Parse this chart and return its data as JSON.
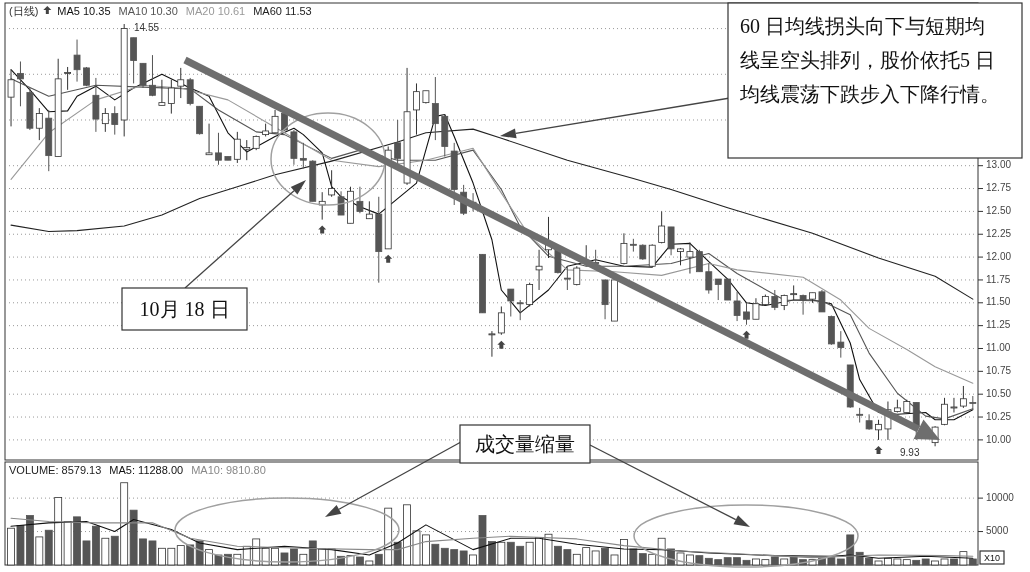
{
  "chart_data": [
    {
      "type": "candlestick",
      "title": "(日线)",
      "legend": "top left",
      "grid": "y",
      "tick_labels": "y",
      "colors": [
        "#ffffff",
        "#555555",
        "#555555",
        "#ffffff",
        "#555555",
        "#ffffff",
        "#ffffff",
        "#555555",
        "#555555",
        "#555555",
        "#ffffff",
        "#555555",
        "#ffffff",
        "#555555",
        "#555555",
        "#555555",
        "#ffffff",
        "#ffffff",
        "#ffffff",
        "#555555",
        "#555555",
        "#ffffff",
        "#555555",
        "#555555",
        "#ffffff",
        "#ffffff",
        "#ffffff",
        "#ffffff",
        "#ffffff",
        "#555555",
        "#555555",
        "#555555",
        "#555555",
        "#ffffff",
        "#ffffff",
        "#555555",
        "#ffffff",
        "#555555",
        "#ffffff",
        "#555555",
        "#ffffff",
        "#555555",
        "#ffffff",
        "#ffffff",
        "#ffffff",
        "#555555",
        "#555555",
        "#555555",
        "#555555",
        "#555555",
        "#555555",
        "#ffffff",
        "#ffffff",
        "#555555",
        "#555555",
        "#ffffff",
        "#ffffff",
        "#ffffff",
        "#555555",
        "#555555",
        "#ffffff",
        "#ffffff",
        "#555555",
        "#555555",
        "#ffffff",
        "#ffffff",
        "#555555",
        "#555555",
        "#ffffff",
        "#ffffff",
        "#555555",
        "#ffffff",
        "#ffffff",
        "#555555",
        "#555555",
        "#555555",
        "#555555",
        "#555555",
        "#555555",
        "#ffffff",
        "#ffffff",
        "#555555",
        "#ffffff",
        "#ffffff",
        "#555555",
        "#ffffff",
        "#555555",
        "#555555",
        "#555555",
        "#555555",
        "#555555",
        "#555555",
        "#ffffff",
        "#ffffff",
        "#ffffff",
        "#ffffff",
        "#555555",
        null,
        "#ffffff",
        "#ffffff",
        "#ffffff",
        "#ffffff",
        "#555555"
      ],
      "categories": [
        null,
        null,
        null,
        null,
        null,
        null,
        null,
        null,
        null,
        null,
        null,
        null,
        null,
        null,
        null,
        null,
        null,
        null,
        null,
        null,
        null,
        null,
        null,
        null,
        null,
        null,
        null,
        null,
        null,
        null,
        null,
        null,
        null,
        null,
        null,
        null,
        null,
        null,
        null,
        null,
        null,
        null,
        null,
        null,
        null,
        null,
        null,
        null,
        null,
        null,
        null,
        null,
        null,
        null,
        null,
        null,
        null,
        null,
        null,
        null,
        null,
        null,
        null,
        null,
        null,
        null,
        null,
        null,
        null,
        null,
        null,
        null,
        null,
        null,
        null,
        null,
        null,
        null,
        null,
        null,
        null,
        null,
        null,
        null,
        null,
        null,
        null,
        null,
        null,
        null,
        null,
        null,
        null,
        null,
        null,
        null,
        null,
        null,
        null,
        null,
        null,
        null,
        null
      ],
      "ohlc": [
        [
          13.75,
          14.05,
          13.43,
          13.94
        ],
        [
          14.01,
          14.14,
          13.65,
          13.95
        ],
        [
          13.8,
          13.85,
          13.39,
          13.41
        ],
        [
          13.41,
          13.63,
          13.28,
          13.57
        ],
        [
          13.52,
          13.61,
          12.94,
          13.11
        ],
        [
          13.1,
          14.17,
          13.1,
          13.95
        ],
        [
          14.01,
          14.08,
          13.83,
          14.02
        ],
        [
          14.21,
          14.38,
          13.92,
          14.05
        ],
        [
          14.07,
          14.08,
          13.87,
          13.88
        ],
        [
          13.77,
          13.96,
          13.37,
          13.51
        ],
        [
          13.46,
          13.63,
          13.37,
          13.57
        ],
        [
          13.57,
          13.65,
          13.34,
          13.45
        ],
        [
          13.5,
          14.55,
          13.32,
          14.5
        ],
        [
          14.4,
          14.4,
          13.9,
          14.15
        ],
        [
          14.12,
          14.12,
          13.85,
          13.88
        ],
        [
          13.88,
          14.21,
          13.76,
          13.77
        ],
        [
          13.66,
          13.94,
          13.66,
          13.69
        ],
        [
          13.68,
          13.94,
          13.57,
          13.85
        ],
        [
          13.87,
          14.07,
          13.74,
          13.94
        ],
        [
          13.94,
          13.96,
          13.66,
          13.68
        ],
        [
          13.65,
          13.65,
          13.34,
          13.35
        ],
        [
          13.12,
          13.46,
          13.12,
          13.14
        ],
        [
          13.14,
          13.36,
          13.01,
          13.06
        ],
        [
          13.1,
          13.1,
          13.06,
          13.06
        ],
        [
          13.07,
          13.37,
          13.03,
          13.29
        ],
        [
          13.18,
          13.28,
          13.06,
          13.2
        ],
        [
          13.19,
          13.33,
          13.17,
          13.32
        ],
        [
          13.34,
          13.46,
          13.32,
          13.38
        ],
        [
          13.36,
          13.61,
          13.36,
          13.54
        ],
        [
          13.57,
          13.6,
          13.38,
          13.39
        ],
        [
          13.37,
          13.39,
          13.01,
          13.08
        ],
        [
          13.08,
          13.25,
          12.97,
          13.06
        ],
        [
          13.05,
          13.06,
          12.61,
          12.61
        ],
        [
          12.57,
          12.71,
          12.41,
          12.61
        ],
        [
          12.68,
          12.95,
          12.66,
          12.75
        ],
        [
          12.66,
          12.72,
          12.46,
          12.46
        ],
        [
          12.37,
          12.77,
          12.37,
          12.72
        ],
        [
          12.61,
          12.77,
          12.48,
          12.5
        ],
        [
          12.42,
          12.61,
          12.42,
          12.47
        ],
        [
          12.47,
          12.66,
          11.72,
          12.06
        ],
        [
          12.09,
          13.21,
          12.09,
          13.17
        ],
        [
          13.25,
          13.5,
          12.97,
          13.08
        ],
        [
          12.81,
          14.07,
          12.79,
          13.59
        ],
        [
          13.61,
          13.9,
          13.34,
          13.81
        ],
        [
          13.69,
          13.82,
          13.68,
          13.82
        ],
        [
          13.68,
          13.97,
          13.28,
          13.46
        ],
        [
          13.54,
          13.56,
          13.1,
          13.21
        ],
        [
          13.16,
          13.25,
          12.57,
          12.74
        ],
        [
          12.71,
          12.79,
          12.46,
          12.48
        ],
        [
          12.6,
          12.7,
          12.5,
          12.58
        ],
        [
          12.03,
          12.03,
          11.39,
          11.39
        ],
        [
          11.15,
          11.19,
          10.91,
          11.16
        ],
        [
          11.17,
          11.46,
          11.15,
          11.39
        ],
        [
          11.65,
          11.65,
          11.35,
          11.52
        ],
        [
          11.5,
          11.53,
          11.31,
          11.49
        ],
        [
          11.48,
          11.72,
          11.46,
          11.7
        ],
        [
          11.86,
          12.08,
          11.64,
          11.9
        ],
        [
          12.08,
          12.44,
          11.99,
          12.15
        ],
        [
          12.1,
          12.12,
          11.82,
          11.83
        ],
        [
          11.77,
          11.9,
          11.64,
          11.76
        ],
        [
          11.7,
          11.9,
          11.69,
          11.88
        ],
        [
          11.93,
          12.13,
          11.9,
          11.95
        ],
        [
          11.94,
          12.08,
          11.92,
          11.93
        ],
        [
          11.75,
          11.75,
          11.32,
          11.48
        ],
        [
          11.3,
          11.76,
          11.3,
          11.75
        ],
        [
          11.93,
          12.26,
          11.92,
          12.15
        ],
        [
          12.14,
          12.2,
          12.06,
          12.13
        ],
        [
          12.13,
          12.14,
          11.97,
          11.98
        ],
        [
          11.9,
          12.14,
          11.9,
          12.13
        ],
        [
          12.16,
          12.5,
          12.15,
          12.34
        ],
        [
          12.33,
          12.33,
          12.02,
          12.09
        ],
        [
          12.06,
          12.1,
          11.91,
          12.09
        ],
        [
          12.0,
          12.16,
          11.82,
          12.06
        ],
        [
          12.06,
          12.08,
          11.84,
          11.84
        ],
        [
          11.84,
          11.93,
          11.6,
          11.64
        ],
        [
          11.76,
          11.76,
          11.53,
          11.7
        ],
        [
          11.76,
          11.76,
          11.53,
          11.53
        ],
        [
          11.52,
          11.62,
          11.3,
          11.36
        ],
        [
          11.4,
          11.5,
          11.26,
          11.32
        ],
        [
          11.32,
          11.55,
          11.32,
          11.49
        ],
        [
          11.48,
          11.59,
          11.47,
          11.57
        ],
        [
          11.57,
          11.64,
          11.42,
          11.45
        ],
        [
          11.47,
          11.59,
          11.42,
          11.58
        ],
        [
          11.59,
          11.69,
          11.53,
          11.6
        ],
        [
          11.58,
          11.59,
          11.37,
          11.53
        ],
        [
          11.54,
          11.61,
          11.5,
          11.61
        ],
        [
          11.62,
          11.64,
          11.4,
          11.4
        ],
        [
          11.35,
          11.36,
          11.04,
          11.05
        ],
        [
          11.07,
          11.19,
          10.9,
          11.01
        ],
        [
          10.82,
          10.82,
          10.35,
          10.36
        ],
        [
          10.28,
          10.35,
          10.19,
          10.27
        ],
        [
          10.21,
          10.28,
          10.11,
          10.12
        ],
        [
          10.11,
          10.22,
          10.0,
          10.17
        ],
        [
          10.12,
          10.42,
          10.0,
          10.33
        ],
        [
          10.31,
          10.44,
          10.3,
          10.35
        ],
        [
          10.3,
          10.44,
          10.3,
          10.42
        ],
        [
          10.41,
          10.41,
          10.0,
          10.15
        ],
        null,
        [
          9.97,
          10.15,
          9.93,
          10.14
        ],
        [
          10.17,
          10.46,
          10.16,
          10.39
        ],
        [
          10.35,
          10.46,
          10.3,
          10.36
        ],
        [
          10.37,
          10.59,
          10.35,
          10.45
        ],
        [
          10.41,
          10.48,
          10.33,
          10.4
        ]
      ],
      "series": [
        {
          "type": "line",
          "name": "MA5 10.35",
          "color": "#111111",
          "values": [
            14.05,
            null,
            13.83,
            null,
            13.59,
            null,
            13.6,
            13.76,
            null,
            13.87,
            null,
            13.72,
            null,
            13.85,
            null,
            null,
            14.0,
            null,
            null,
            13.85,
            null,
            13.76,
            null,
            13.36,
            null,
            13.15,
            null,
            null,
            13.32,
            null,
            13.41,
            13.34,
            null,
            13.14,
            12.77,
            12.66,
            null,
            12.55,
            null,
            12.47,
            null,
            12.64,
            null,
            12.81,
            null,
            13.54,
            13.56,
            13.32,
            null,
            12.81,
            null,
            12.19,
            11.64,
            null,
            11.39,
            null,
            null,
            11.64,
            null,
            11.9,
            null,
            null,
            11.97,
            null,
            null,
            11.9,
            null,
            null,
            11.89,
            null,
            12.14,
            null,
            12.15,
            null,
            11.95,
            null,
            11.76,
            null,
            11.5,
            null,
            11.47,
            null,
            null,
            11.53,
            null,
            11.53,
            null,
            11.49,
            null,
            11.06,
            10.66,
            null,
            10.3,
            null,
            10.28,
            null,
            null,
            10.3,
            10.22,
            null,
            10.22,
            null,
            10.33
          ]
        },
        {
          "type": "line",
          "name": "MA10 10.30",
          "color": "#555555",
          "values": [
            13.95,
            null,
            null,
            null,
            13.76,
            null,
            null,
            null,
            null,
            13.88,
            null,
            null,
            null,
            null,
            13.86,
            null,
            null,
            null,
            null,
            13.84,
            null,
            null,
            13.61,
            null,
            null,
            null,
            13.37,
            null,
            null,
            13.34,
            null,
            null,
            null,
            null,
            13.08,
            null,
            null,
            13.17,
            null,
            null,
            null,
            13.06,
            null,
            null,
            null,
            13.06,
            null,
            null,
            null,
            13.17,
            null,
            null,
            12.74,
            null,
            12.33,
            null,
            null,
            12.01,
            null,
            null,
            null,
            11.9,
            null,
            null,
            null,
            11.9,
            null,
            null,
            null,
            null,
            11.93,
            null,
            null,
            null,
            12.04,
            null,
            null,
            11.82,
            null,
            null,
            null,
            null,
            11.53,
            null,
            null,
            null,
            11.52,
            null,
            null,
            11.37,
            null,
            10.95,
            null,
            null,
            10.51,
            null,
            null,
            10.26,
            null,
            10.23,
            null,
            null,
            10.34
          ]
        },
        {
          "type": "line",
          "name": "MA20 10.61",
          "color": "#999999",
          "values": [
            12.85,
            null,
            null,
            null,
            13.36,
            null,
            null,
            null,
            null,
            13.72,
            null,
            null,
            null,
            null,
            13.88,
            null,
            null,
            null,
            13.85,
            null,
            null,
            null,
            null,
            13.72,
            null,
            null,
            null,
            null,
            null,
            13.36,
            null,
            null,
            null,
            null,
            13.06,
            null,
            null,
            null,
            null,
            12.99,
            null,
            null,
            null,
            null,
            13.06,
            null,
            null,
            null,
            null,
            13.19,
            null,
            null,
            12.7,
            null,
            null,
            12.23,
            null,
            null,
            null,
            11.86,
            null,
            null,
            null,
            null,
            11.84,
            null,
            null,
            null,
            null,
            11.8,
            null,
            null,
            null,
            null,
            11.93,
            null,
            null,
            11.86,
            null,
            null,
            null,
            null,
            null,
            null,
            11.78,
            null,
            null,
            null,
            11.53,
            null,
            null,
            11.22,
            null,
            null,
            null,
            10.99,
            null,
            null,
            10.8,
            null,
            null,
            null,
            10.62
          ]
        },
        {
          "type": "line",
          "name": "MA60 11.53",
          "color": "#222222",
          "values": [
            12.35,
            null,
            null,
            null,
            12.28,
            null,
            null,
            12.29,
            null,
            null,
            null,
            null,
            12.34,
            null,
            null,
            null,
            12.46,
            null,
            null,
            null,
            12.64,
            null,
            null,
            null,
            12.77,
            null,
            null,
            null,
            12.9,
            null,
            null,
            null,
            null,
            null,
            13.05,
            null,
            null,
            null,
            null,
            null,
            null,
            13.26,
            null,
            null,
            13.36,
            null,
            null,
            null,
            null,
            13.4,
            null,
            null,
            13.3,
            null,
            null,
            null,
            null,
            null,
            null,
            13.06,
            null,
            null,
            null,
            null,
            null,
            null,
            12.86,
            null,
            null,
            null,
            12.74,
            null,
            null,
            null,
            null,
            null,
            12.54,
            null,
            null,
            null,
            null,
            null,
            null,
            null,
            null,
            12.26,
            null,
            null,
            null,
            null,
            null,
            null,
            11.99,
            null,
            null,
            null,
            null,
            null,
            11.79,
            null,
            null,
            null,
            11.54
          ]
        }
      ],
      "ylim": [
        9.78,
        14.78
      ],
      "yticks": [
        {
          "value": 10,
          "label": "10.00"
        },
        {
          "value": 10.25,
          "label": "10.25"
        },
        {
          "value": 10.5,
          "label": "10.50"
        },
        {
          "value": 10.75,
          "label": "10.75"
        },
        {
          "value": 11,
          "label": "11.00"
        },
        {
          "value": 11.25,
          "label": "11.25"
        },
        {
          "value": 11.5,
          "label": "11.50"
        },
        {
          "value": 11.75,
          "label": "11.75"
        },
        {
          "value": 12,
          "label": "12.00"
        },
        {
          "value": 12.25,
          "label": "12.25"
        },
        {
          "value": 12.5,
          "label": "12.50"
        },
        {
          "value": 12.75,
          "label": "12.75"
        },
        {
          "value": 13,
          "label": "13.00"
        },
        {
          "value": 13.5,
          "label": null
        },
        {
          "value": 14,
          "label": null
        },
        {
          "value": 14.5,
          "label": null
        }
      ],
      "annotations": [
        "14.55",
        "9.93",
        "60 日均线拐头向下与短期均线呈空头排列，股价依托5 日均线震荡下跌步入下降行情。",
        "10月 18 日"
      ]
    },
    {
      "type": "bar",
      "legend": "top left",
      "grid": "y",
      "tick_labels": "y",
      "categories": [
        null,
        null,
        null,
        null,
        null,
        null,
        null,
        null,
        null,
        null,
        null,
        null,
        null,
        null,
        null,
        null,
        null,
        null,
        null,
        null,
        null,
        null,
        null,
        null,
        null,
        null,
        null,
        null,
        null,
        null,
        null,
        null,
        null,
        null,
        null,
        null,
        null,
        null,
        null,
        null,
        null,
        null,
        null,
        null,
        null,
        null,
        null,
        null,
        null,
        null,
        null,
        null,
        null,
        null,
        null,
        null,
        null,
        null,
        null,
        null,
        null,
        null,
        null,
        null,
        null,
        null,
        null,
        null,
        null,
        null,
        null,
        null,
        null,
        null,
        null,
        null,
        null,
        null,
        null,
        null,
        null,
        null,
        null,
        null,
        null,
        null,
        null,
        null,
        null,
        null,
        null,
        null,
        null,
        null,
        null,
        null,
        null,
        null,
        null,
        null,
        null,
        null,
        null
      ],
      "series": [
        {
          "type": "bar",
          "name": "VOLUME: 8579.13",
          "color": "#222222",
          "values": [
            5500,
            5900,
            7400,
            4200,
            5200,
            10100,
            6500,
            7200,
            3600,
            5800,
            4000,
            4300,
            12300,
            8200,
            3900,
            3600,
            2500,
            2500,
            2900,
            3000,
            3600,
            2300,
            1500,
            1600,
            1600,
            2800,
            3900,
            2500,
            2500,
            1800,
            2400,
            1600,
            3600,
            2400,
            2400,
            1300,
            1400,
            1200,
            600,
            1600,
            8500,
            3400,
            9000,
            5100,
            4500,
            3100,
            2500,
            2300,
            2100,
            1500,
            7400,
            3500,
            3400,
            3400,
            2800,
            3400,
            4100,
            4600,
            2800,
            2300,
            1600,
            2600,
            2100,
            2500,
            1500,
            3800,
            2400,
            1700,
            1600,
            4000,
            2400,
            1800,
            1500,
            1400,
            1000,
            800,
            1100,
            1100,
            700,
            900,
            800,
            1200,
            900,
            1200,
            800,
            800,
            1100,
            1100,
            900,
            4500,
            1900,
            1000,
            600,
            1000,
            900,
            800,
            700,
            900,
            600,
            900,
            900,
            2000,
            900
          ],
          "colors": [
            "#ffffff",
            "#555555",
            "#555555",
            "#ffffff",
            "#555555",
            "#ffffff",
            "#ffffff",
            "#555555",
            "#555555",
            "#555555",
            "#ffffff",
            "#555555",
            "#ffffff",
            "#555555",
            "#555555",
            "#555555",
            "#ffffff",
            "#ffffff",
            "#ffffff",
            "#555555",
            "#555555",
            "#ffffff",
            "#555555",
            "#555555",
            "#ffffff",
            "#ffffff",
            "#ffffff",
            "#ffffff",
            "#ffffff",
            "#555555",
            "#555555",
            "#ffffff",
            "#555555",
            "#ffffff",
            "#ffffff",
            "#555555",
            "#ffffff",
            "#555555",
            "#ffffff",
            "#555555",
            "#ffffff",
            "#555555",
            "#ffffff",
            "#ffffff",
            "#ffffff",
            "#555555",
            "#555555",
            "#555555",
            "#555555",
            "#ffffff",
            "#555555",
            "#555555",
            "#ffffff",
            "#555555",
            "#555555",
            "#ffffff",
            "#ffffff",
            "#ffffff",
            "#555555",
            "#555555",
            "#ffffff",
            "#ffffff",
            "#ffffff",
            "#555555",
            "#ffffff",
            "#ffffff",
            "#555555",
            "#555555",
            "#ffffff",
            "#ffffff",
            "#555555",
            "#ffffff",
            "#ffffff",
            "#555555",
            "#555555",
            "#555555",
            "#555555",
            "#555555",
            "#555555",
            "#ffffff",
            "#ffffff",
            "#555555",
            "#ffffff",
            "#555555",
            "#555555",
            "#ffffff",
            "#555555",
            "#555555",
            "#555555",
            "#555555",
            "#555555",
            "#555555",
            "#ffffff",
            "#ffffff",
            "#ffffff",
            "#ffffff",
            "#555555",
            "#555555",
            "#ffffff",
            "#ffffff",
            "#555555",
            "#ffffff",
            "#555555"
          ]
        },
        {
          "type": "line",
          "name": "MA5: 11288.00",
          "color": "#111111",
          "values": [
            5800,
            null,
            null,
            null,
            6300,
            null,
            null,
            null,
            6500,
            null,
            null,
            5000,
            null,
            6800,
            null,
            null,
            null,
            5300,
            null,
            null,
            3300,
            null,
            null,
            null,
            2300,
            null,
            null,
            null,
            null,
            2800,
            null,
            null,
            null,
            null,
            2300,
            null,
            null,
            null,
            1500,
            null,
            null,
            3300,
            null,
            null,
            6000,
            null,
            null,
            null,
            null,
            2300,
            null,
            null,
            null,
            4000,
            null,
            null,
            4000,
            null,
            null,
            null,
            3100,
            null,
            null,
            null,
            null,
            2400,
            null,
            null,
            null,
            2300,
            null,
            null,
            null,
            null,
            1800,
            null,
            null,
            null,
            null,
            null,
            null,
            1400,
            null,
            null,
            null,
            null,
            null,
            1300,
            null,
            1500,
            null,
            null,
            1000,
            null,
            null,
            null,
            null,
            1300,
            null,
            null,
            null,
            null,
            1000
          ]
        },
        {
          "type": "line",
          "name": "MA10: 9810.80",
          "color": "#888888",
          "values": [
            7000,
            null,
            null,
            null,
            6500,
            null,
            null,
            null,
            null,
            6300,
            null,
            null,
            null,
            null,
            null,
            6300,
            null,
            null,
            null,
            4000,
            null,
            null,
            null,
            null,
            2800,
            null,
            null,
            null,
            null,
            null,
            null,
            2500,
            null,
            null,
            null,
            null,
            null,
            null,
            2300,
            null,
            null,
            2300,
            null,
            null,
            3500,
            null,
            null,
            null,
            null,
            4000,
            null,
            null,
            null,
            4300,
            null,
            null,
            null,
            null,
            null,
            null,
            3900,
            null,
            null,
            null,
            null,
            2900,
            null,
            null,
            null,
            null,
            null,
            2100,
            null,
            null,
            null,
            null,
            null,
            null,
            1600,
            null,
            null,
            null,
            null,
            null,
            null,
            1100,
            null,
            null,
            null,
            null,
            null,
            null,
            1500,
            null,
            null,
            null,
            null,
            null,
            null,
            1400,
            null,
            null,
            1300
          ]
        }
      ],
      "ylim": [
        0,
        15400
      ],
      "yticks": [
        5000,
        10000
      ],
      "annotations": [
        "成交量缩量",
        "X10"
      ]
    }
  ]
}
